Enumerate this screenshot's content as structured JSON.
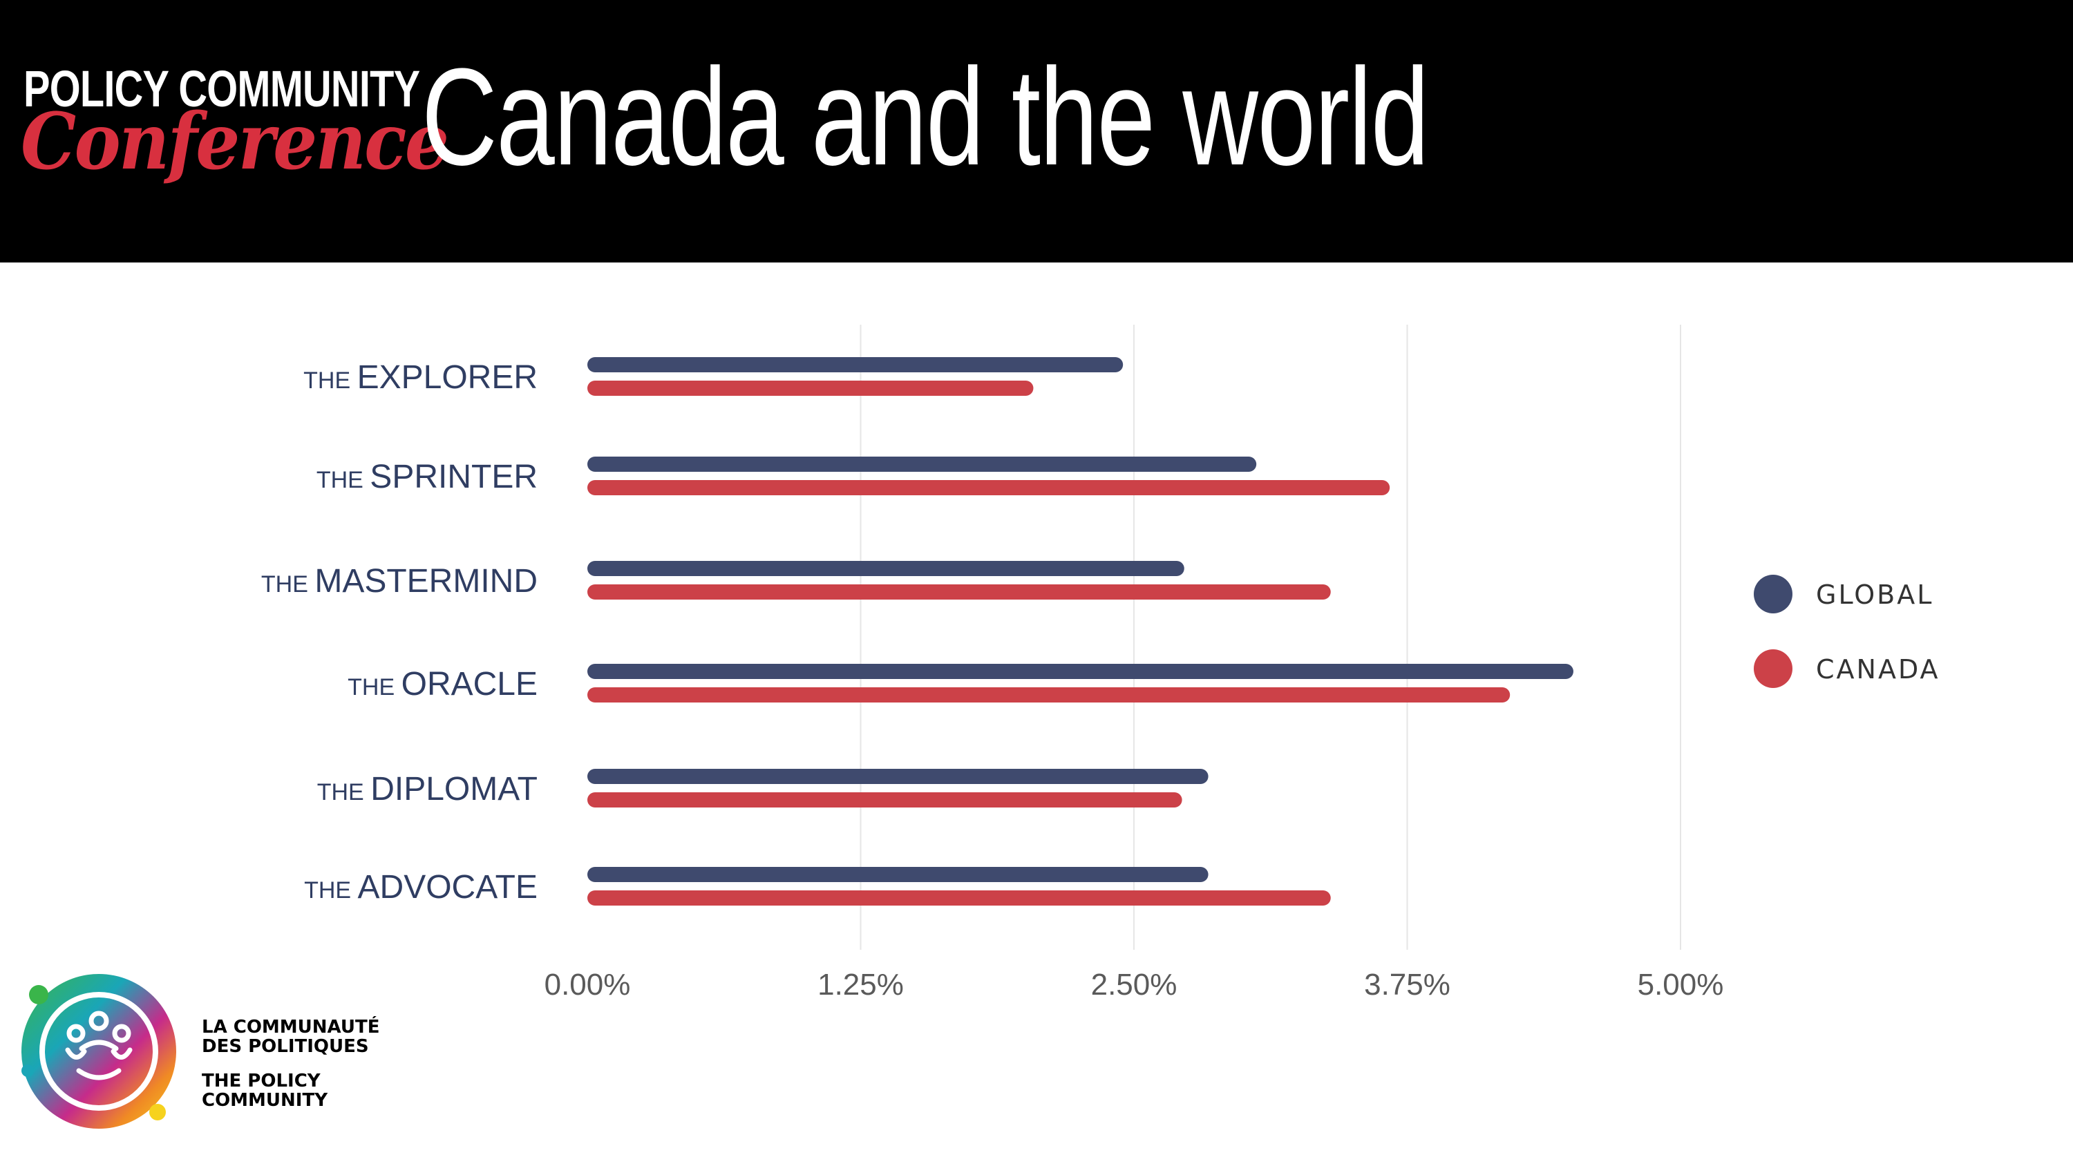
{
  "header": {
    "brand_top": "POLICY COMMUNITY",
    "brand_bottom": "Conference",
    "title": "Canada and the world"
  },
  "colors": {
    "global": "#3f4a6e",
    "canada": "#cc4148",
    "header_bg": "#000000",
    "brand_accent": "#d8303f",
    "grid": "#e6e6e6"
  },
  "chart_data": {
    "type": "bar",
    "orientation": "horizontal",
    "categories": [
      {
        "prefix": "THE",
        "name": "EXPLORER"
      },
      {
        "prefix": "THE",
        "name": "SPRINTER"
      },
      {
        "prefix": "THE",
        "name": "MASTERMIND"
      },
      {
        "prefix": "THE",
        "name": "ORACLE"
      },
      {
        "prefix": "THE",
        "name": "DIPLOMAT"
      },
      {
        "prefix": "THE",
        "name": "ADVOCATE"
      }
    ],
    "series": [
      {
        "name": "GLOBAL",
        "values": [
          2.45,
          3.06,
          2.73,
          4.51,
          2.84,
          2.84
        ]
      },
      {
        "name": "CANADA",
        "values": [
          2.04,
          3.67,
          3.4,
          4.22,
          2.72,
          3.4
        ]
      }
    ],
    "xlim": [
      0,
      5
    ],
    "xticks": [
      0,
      1.25,
      2.5,
      3.75,
      5
    ],
    "xtick_labels": [
      "0.00%",
      "1.25%",
      "2.50%",
      "3.75%",
      "5.00%"
    ],
    "grid": true,
    "legend_position": "right",
    "title": "",
    "xlabel": "",
    "ylabel": ""
  },
  "footer": {
    "org_fr_line1": "LA COMMUNAUTÉ",
    "org_fr_line2": "DES POLITIQUES",
    "org_en_line1": "THE POLICY",
    "org_en_line2": "COMMUNITY"
  }
}
